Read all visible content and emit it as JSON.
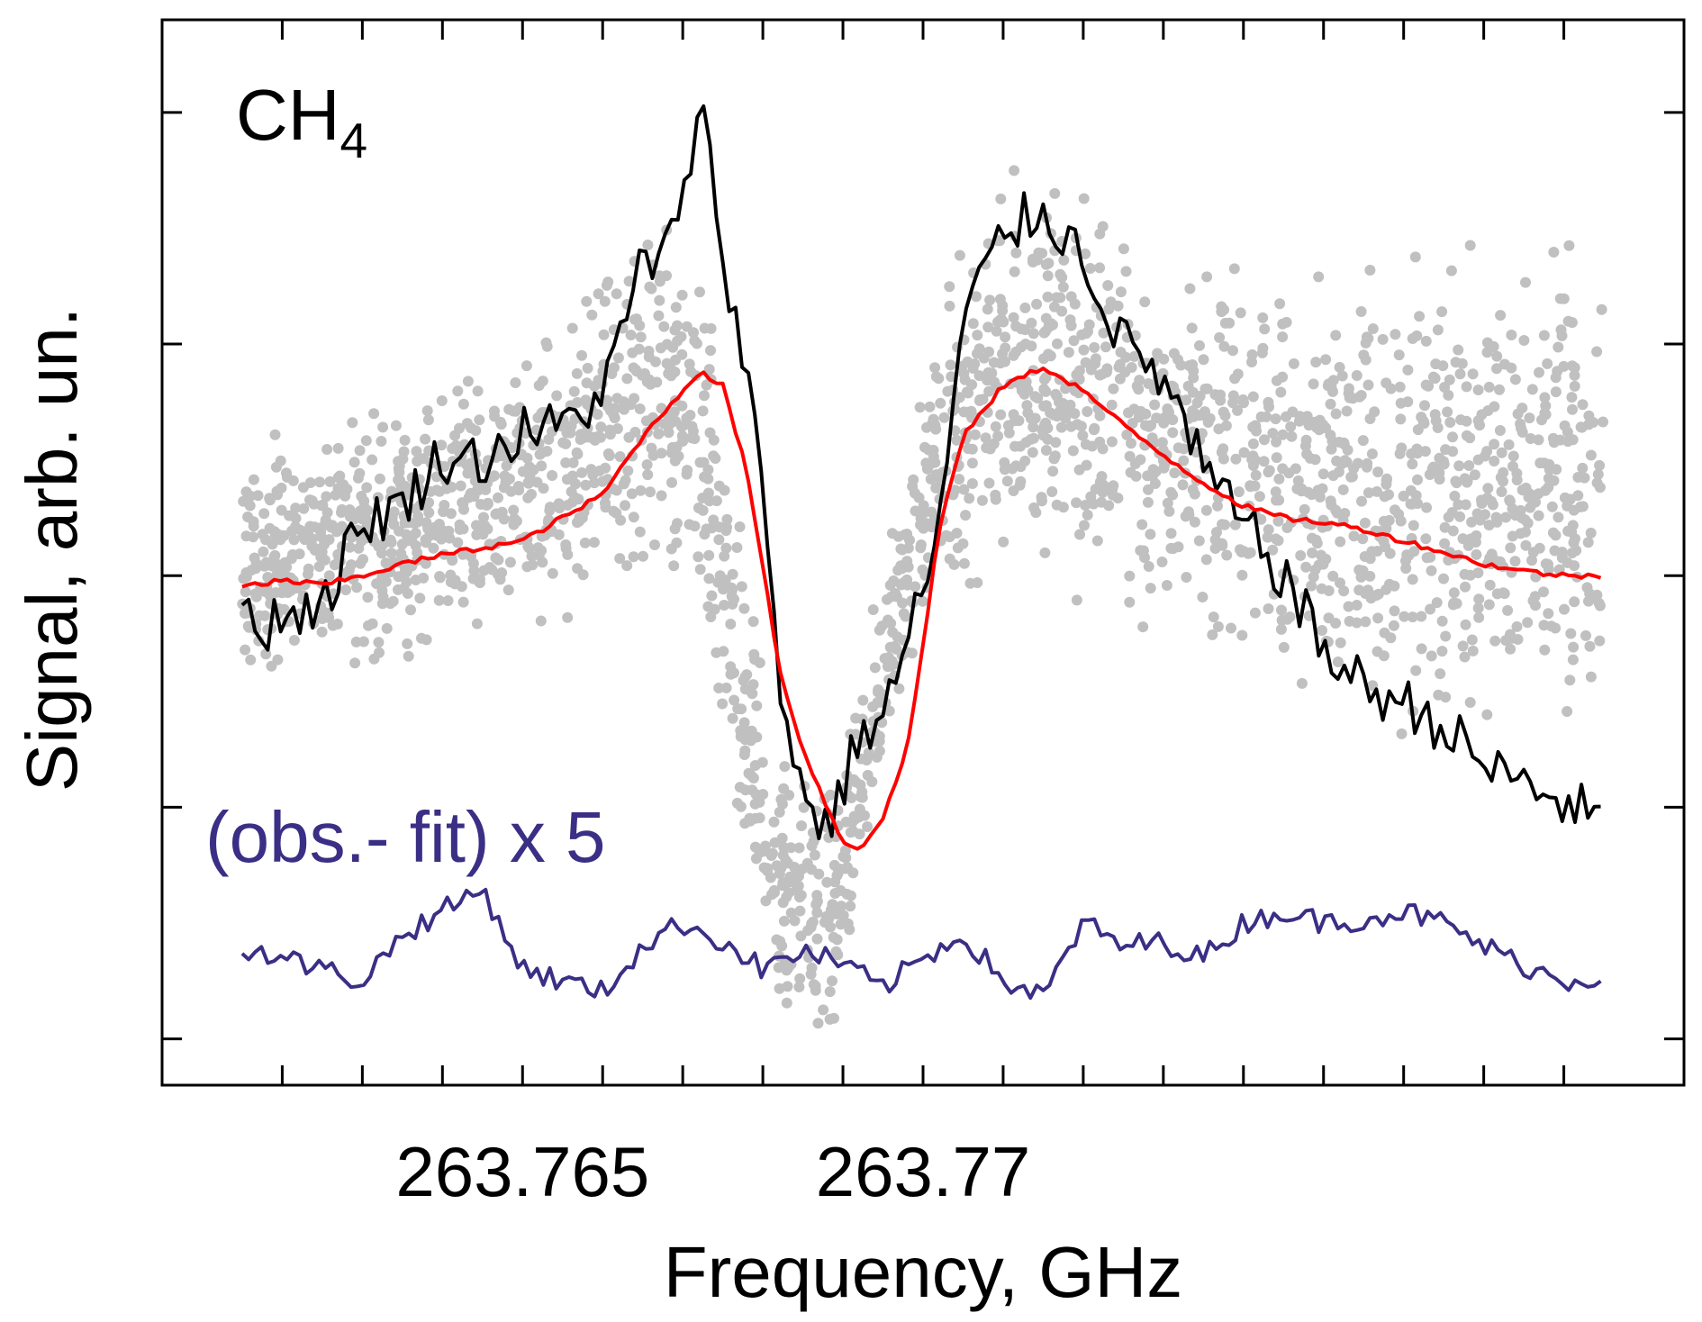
{
  "chart_data": {
    "type": "line",
    "title": "",
    "xlabel": "Frequency, GHz",
    "ylabel": "Signal, arb. un.",
    "xlim": [
      263.7605,
      263.7795
    ],
    "ylim": [
      -2.0,
      2.6
    ],
    "x_tick_labels": [
      "263.765",
      "263.77"
    ],
    "x_major_ticks": [
      263.765,
      263.77
    ],
    "x_minor_ticks": [
      263.762,
      263.763,
      263.764,
      263.766,
      263.767,
      263.768,
      263.769,
      263.771,
      263.772,
      263.773,
      263.774,
      263.775,
      263.776,
      263.777,
      263.778
    ],
    "y_ticks": [
      -1.8,
      -0.8,
      0.2,
      1.2,
      2.2
    ],
    "y_tick_labels_shown": false,
    "grid": false,
    "annotations": {
      "molecule_main": "CH",
      "molecule_sub": "4",
      "residual_label": "(obs.- fit) x 5"
    },
    "colors": {
      "scatter": "#c0c0c0",
      "observed": "#000000",
      "fit": "#ff0000",
      "residual": "#3a2f85"
    },
    "series": [
      {
        "type": "scatter",
        "band": {
          "x": [
            263.7615,
            263.7625,
            263.7635,
            263.7645,
            263.7655,
            263.7662,
            263.7667,
            263.7672,
            263.7677,
            263.7682,
            263.7687,
            263.769,
            263.7695,
            263.7702,
            263.771,
            263.772,
            263.773,
            263.7745,
            263.776,
            263.7775,
            263.7785
          ],
          "y_upper": [
            0.9,
            1.0,
            1.1,
            1.25,
            1.45,
            1.75,
            2.05,
            1.7,
            0.7,
            -0.4,
            -0.55,
            -0.4,
            0.3,
            1.45,
            2.2,
            2.05,
            1.75,
            1.75,
            1.8,
            1.9,
            1.85
          ],
          "y_lower": [
            -0.4,
            -0.4,
            -0.3,
            -0.2,
            -0.15,
            -0.05,
            0.05,
            -0.2,
            -1.2,
            -1.9,
            -2.0,
            -1.85,
            -0.7,
            -0.05,
            0.1,
            -0.05,
            -0.2,
            -0.45,
            -0.65,
            -0.75,
            -0.8
          ]
        }
      },
      {
        "type": "line",
        "x": [
          263.7615,
          263.76175,
          263.762,
          263.7625,
          263.763,
          263.7635,
          263.764,
          263.7645,
          263.765,
          263.7655,
          263.766,
          263.7662,
          263.7665,
          263.7667,
          263.767,
          263.7672,
          263.7675,
          263.7677,
          263.768,
          263.7682,
          263.7685,
          263.7688,
          263.769,
          263.7692,
          263.7695,
          263.7698,
          263.7702,
          263.7705,
          263.771,
          263.7715,
          263.772,
          263.7725,
          263.773,
          263.7735,
          263.774,
          263.7745,
          263.775,
          263.7755,
          263.776,
          263.7765,
          263.777,
          263.7775,
          263.778,
          263.7785
        ],
        "y": [
          0.1,
          -0.02,
          0.03,
          0.08,
          0.43,
          0.5,
          0.72,
          0.7,
          0.82,
          0.84,
          1.0,
          1.18,
          1.58,
          1.55,
          1.75,
          2.3,
          1.6,
          1.25,
          0.62,
          -0.25,
          -0.75,
          -0.9,
          -0.7,
          -0.5,
          -0.4,
          -0.1,
          0.4,
          1.3,
          1.68,
          1.78,
          1.58,
          1.2,
          1.05,
          0.65,
          0.42,
          0.2,
          -0.12,
          -0.28,
          -0.35,
          -0.45,
          -0.62,
          -0.7,
          -0.78,
          -0.86
        ]
      },
      {
        "type": "line",
        "x": [
          263.7615,
          263.762,
          263.7625,
          263.763,
          263.7635,
          263.764,
          263.7645,
          263.765,
          263.7655,
          263.766,
          263.7662,
          263.7665,
          263.7668,
          263.767,
          263.7672,
          263.7675,
          263.7678,
          263.768,
          263.7682,
          263.7685,
          263.7688,
          263.769,
          263.7692,
          263.7695,
          263.7698,
          263.77,
          263.7702,
          263.7705,
          263.771,
          263.7715,
          263.772,
          263.7725,
          263.773,
          263.7735,
          263.774,
          263.7745,
          263.775,
          263.7755,
          263.776,
          263.7765,
          263.777,
          263.7775,
          263.778,
          263.7785
        ],
        "y": [
          0.15,
          0.18,
          0.16,
          0.2,
          0.25,
          0.29,
          0.32,
          0.35,
          0.45,
          0.55,
          0.65,
          0.8,
          0.92,
          1.0,
          1.08,
          1.02,
          0.65,
          0.25,
          -0.2,
          -0.55,
          -0.8,
          -0.95,
          -0.98,
          -0.85,
          -0.55,
          -0.1,
          0.4,
          0.8,
          1.02,
          1.1,
          1.0,
          0.85,
          0.72,
          0.6,
          0.5,
          0.45,
          0.43,
          0.4,
          0.35,
          0.3,
          0.25,
          0.22,
          0.2,
          0.2
        ]
      },
      {
        "type": "line",
        "x": [
          263.7615,
          263.762,
          263.7625,
          263.763,
          263.7635,
          263.764,
          263.7645,
          263.765,
          263.7655,
          263.766,
          263.7665,
          263.767,
          263.7675,
          263.768,
          263.7685,
          263.769,
          263.7695,
          263.77,
          263.7705,
          263.771,
          263.7715,
          263.772,
          263.7725,
          263.773,
          263.7735,
          263.774,
          263.7745,
          263.775,
          263.7755,
          263.776,
          263.7765,
          263.777,
          263.7775,
          263.778,
          263.7785
        ],
        "y": [
          -1.4,
          -1.45,
          -1.5,
          -1.55,
          -1.35,
          -1.25,
          -1.15,
          -1.5,
          -1.55,
          -1.6,
          -1.4,
          -1.3,
          -1.38,
          -1.5,
          -1.42,
          -1.48,
          -1.58,
          -1.45,
          -1.35,
          -1.55,
          -1.62,
          -1.3,
          -1.4,
          -1.38,
          -1.45,
          -1.3,
          -1.25,
          -1.3,
          -1.28,
          -1.25,
          -1.3,
          -1.4,
          -1.48,
          -1.55,
          -1.53
        ]
      }
    ]
  }
}
